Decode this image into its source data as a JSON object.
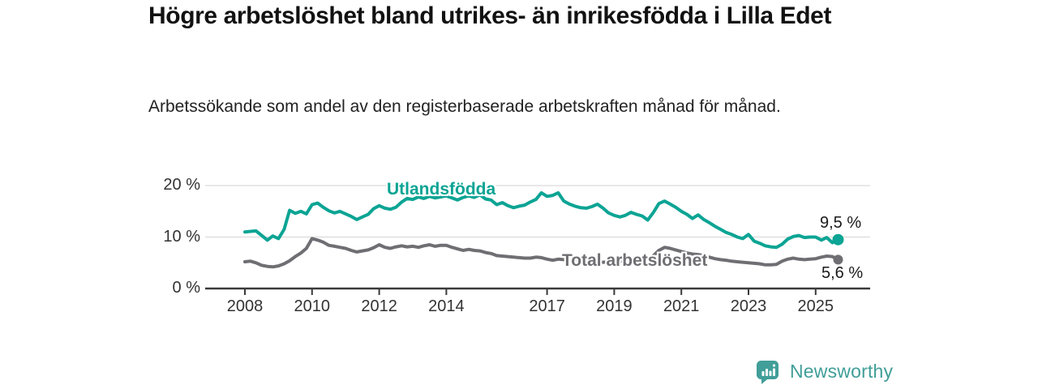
{
  "title": "Högre arbetslöshet bland utrikes- än inrikesfödda i Lilla Edet",
  "subtitle": "Arbetssökande som andel av den registerbaserade arbetskraften månad för månad.",
  "branding": {
    "logo_text": "Newsworthy",
    "logo_color": "#419e99"
  },
  "colors": {
    "background": "#ffffff",
    "axis": "#3a3a3a",
    "gridline": "#dbdbdb",
    "title_text": "#121212",
    "tick_text": "#333333"
  },
  "chart_data": {
    "type": "line",
    "title": "Högre arbetslöshet bland utrikes- än inrikesfödda i Lilla Edet",
    "subtitle": "Arbetssökande som andel av den registerbaserade arbetskraften månad för månad.",
    "xlabel": "",
    "ylabel": "",
    "grid": "horizontal",
    "x_range": [
      2007.9,
      2026.4
    ],
    "ylim": [
      0,
      22
    ],
    "y_axis": {
      "ticks": [
        {
          "label": "20 %",
          "value": 20
        },
        {
          "label": "10 %",
          "value": 10
        },
        {
          "label": "0 %",
          "value": 0
        }
      ]
    },
    "x_axis": {
      "ticks": [
        {
          "label": "2008",
          "year": 2008
        },
        {
          "label": "2010",
          "year": 2010
        },
        {
          "label": "2012",
          "year": 2012
        },
        {
          "label": "2014",
          "year": 2014
        },
        {
          "label": "2017",
          "year": 2017
        },
        {
          "label": "2019",
          "year": 2019
        },
        {
          "label": "2021",
          "year": 2021
        },
        {
          "label": "2023",
          "year": 2023
        },
        {
          "label": "2025",
          "year": 2025
        }
      ]
    },
    "series": [
      {
        "name": "Utlandsfödda",
        "color": "#0ca494",
        "end_label": "9,5 %",
        "end_value": 9.5,
        "marker_radius": 7,
        "points": [
          [
            2008.0,
            11.0
          ],
          [
            2008.17,
            11.1
          ],
          [
            2008.33,
            11.2
          ],
          [
            2008.5,
            10.3
          ],
          [
            2008.67,
            9.4
          ],
          [
            2008.83,
            10.2
          ],
          [
            2009.0,
            9.7
          ],
          [
            2009.17,
            11.5
          ],
          [
            2009.33,
            15.2
          ],
          [
            2009.5,
            14.6
          ],
          [
            2009.67,
            15.0
          ],
          [
            2009.83,
            14.5
          ],
          [
            2010.0,
            16.3
          ],
          [
            2010.17,
            16.6
          ],
          [
            2010.33,
            15.8
          ],
          [
            2010.5,
            15.1
          ],
          [
            2010.67,
            14.7
          ],
          [
            2010.83,
            15.0
          ],
          [
            2011.0,
            14.5
          ],
          [
            2011.17,
            14.0
          ],
          [
            2011.33,
            13.4
          ],
          [
            2011.5,
            13.9
          ],
          [
            2011.67,
            14.4
          ],
          [
            2011.83,
            15.5
          ],
          [
            2012.0,
            16.1
          ],
          [
            2012.17,
            15.6
          ],
          [
            2012.33,
            15.4
          ],
          [
            2012.5,
            15.8
          ],
          [
            2012.67,
            16.8
          ],
          [
            2012.83,
            17.5
          ],
          [
            2013.0,
            17.3
          ],
          [
            2013.17,
            17.8
          ],
          [
            2013.33,
            17.5
          ],
          [
            2013.5,
            17.9
          ],
          [
            2013.67,
            17.6
          ],
          [
            2013.83,
            17.8
          ],
          [
            2014.0,
            18.0
          ],
          [
            2014.17,
            17.6
          ],
          [
            2014.33,
            17.2
          ],
          [
            2014.5,
            17.7
          ],
          [
            2014.67,
            18.0
          ],
          [
            2014.83,
            17.7
          ],
          [
            2015.0,
            18.2
          ],
          [
            2015.17,
            17.4
          ],
          [
            2015.33,
            17.2
          ],
          [
            2015.5,
            16.3
          ],
          [
            2015.67,
            16.7
          ],
          [
            2015.83,
            16.1
          ],
          [
            2016.0,
            15.7
          ],
          [
            2016.17,
            16.0
          ],
          [
            2016.33,
            16.2
          ],
          [
            2016.5,
            16.8
          ],
          [
            2016.67,
            17.3
          ],
          [
            2016.83,
            18.6
          ],
          [
            2017.0,
            17.9
          ],
          [
            2017.17,
            18.1
          ],
          [
            2017.33,
            18.6
          ],
          [
            2017.5,
            17.0
          ],
          [
            2017.67,
            16.4
          ],
          [
            2017.83,
            16.0
          ],
          [
            2018.0,
            15.7
          ],
          [
            2018.17,
            15.6
          ],
          [
            2018.33,
            15.9
          ],
          [
            2018.5,
            16.4
          ],
          [
            2018.67,
            15.6
          ],
          [
            2018.83,
            14.7
          ],
          [
            2019.0,
            14.2
          ],
          [
            2019.17,
            13.9
          ],
          [
            2019.33,
            14.2
          ],
          [
            2019.5,
            14.8
          ],
          [
            2019.67,
            14.4
          ],
          [
            2019.83,
            14.1
          ],
          [
            2020.0,
            13.3
          ],
          [
            2020.17,
            14.8
          ],
          [
            2020.33,
            16.5
          ],
          [
            2020.5,
            17.0
          ],
          [
            2020.67,
            16.4
          ],
          [
            2020.83,
            15.8
          ],
          [
            2021.0,
            15.0
          ],
          [
            2021.17,
            14.4
          ],
          [
            2021.33,
            13.6
          ],
          [
            2021.5,
            14.3
          ],
          [
            2021.67,
            13.4
          ],
          [
            2021.83,
            12.8
          ],
          [
            2022.0,
            12.1
          ],
          [
            2022.17,
            11.5
          ],
          [
            2022.33,
            10.9
          ],
          [
            2022.5,
            10.5
          ],
          [
            2022.67,
            10.0
          ],
          [
            2022.83,
            9.7
          ],
          [
            2023.0,
            10.5
          ],
          [
            2023.17,
            9.2
          ],
          [
            2023.33,
            8.8
          ],
          [
            2023.5,
            8.3
          ],
          [
            2023.67,
            8.1
          ],
          [
            2023.83,
            8.0
          ],
          [
            2024.0,
            8.6
          ],
          [
            2024.17,
            9.6
          ],
          [
            2024.33,
            10.1
          ],
          [
            2024.5,
            10.3
          ],
          [
            2024.67,
            9.9
          ],
          [
            2024.83,
            10.0
          ],
          [
            2025.0,
            10.0
          ],
          [
            2025.17,
            9.4
          ],
          [
            2025.33,
            9.9
          ],
          [
            2025.5,
            8.9
          ],
          [
            2025.67,
            9.5
          ]
        ]
      },
      {
        "name": "Total arbetslöshet",
        "color": "#6e6e73",
        "end_label": "5,6 %",
        "end_value": 5.6,
        "marker_radius": 6,
        "points": [
          [
            2008.0,
            5.2
          ],
          [
            2008.17,
            5.3
          ],
          [
            2008.33,
            5.0
          ],
          [
            2008.5,
            4.5
          ],
          [
            2008.67,
            4.3
          ],
          [
            2008.83,
            4.2
          ],
          [
            2009.0,
            4.4
          ],
          [
            2009.17,
            4.8
          ],
          [
            2009.33,
            5.4
          ],
          [
            2009.5,
            6.2
          ],
          [
            2009.67,
            6.9
          ],
          [
            2009.83,
            7.8
          ],
          [
            2010.0,
            9.7
          ],
          [
            2010.17,
            9.4
          ],
          [
            2010.33,
            9.0
          ],
          [
            2010.5,
            8.4
          ],
          [
            2010.67,
            8.2
          ],
          [
            2010.83,
            8.0
          ],
          [
            2011.0,
            7.8
          ],
          [
            2011.17,
            7.4
          ],
          [
            2011.33,
            7.1
          ],
          [
            2011.5,
            7.3
          ],
          [
            2011.67,
            7.5
          ],
          [
            2011.83,
            7.9
          ],
          [
            2012.0,
            8.5
          ],
          [
            2012.17,
            8.0
          ],
          [
            2012.33,
            7.8
          ],
          [
            2012.5,
            8.1
          ],
          [
            2012.67,
            8.3
          ],
          [
            2012.83,
            8.1
          ],
          [
            2013.0,
            8.2
          ],
          [
            2013.17,
            8.0
          ],
          [
            2013.33,
            8.3
          ],
          [
            2013.5,
            8.5
          ],
          [
            2013.67,
            8.2
          ],
          [
            2013.83,
            8.4
          ],
          [
            2014.0,
            8.4
          ],
          [
            2014.17,
            8.0
          ],
          [
            2014.33,
            7.7
          ],
          [
            2014.5,
            7.4
          ],
          [
            2014.67,
            7.6
          ],
          [
            2014.83,
            7.4
          ],
          [
            2015.0,
            7.3
          ],
          [
            2015.17,
            7.0
          ],
          [
            2015.33,
            6.8
          ],
          [
            2015.5,
            6.4
          ],
          [
            2015.67,
            6.3
          ],
          [
            2015.83,
            6.2
          ],
          [
            2016.0,
            6.1
          ],
          [
            2016.17,
            6.0
          ],
          [
            2016.33,
            5.9
          ],
          [
            2016.5,
            5.9
          ],
          [
            2016.67,
            6.1
          ],
          [
            2016.83,
            6.0
          ],
          [
            2017.0,
            5.7
          ],
          [
            2017.17,
            5.5
          ],
          [
            2017.33,
            5.7
          ],
          [
            2017.5,
            5.6
          ],
          [
            2017.67,
            5.4
          ],
          [
            2017.83,
            5.3
          ],
          [
            2018.0,
            5.2
          ],
          [
            2018.17,
            5.4
          ],
          [
            2018.33,
            5.3
          ],
          [
            2018.5,
            5.2
          ],
          [
            2018.67,
            5.1
          ],
          [
            2018.83,
            5.2
          ],
          [
            2019.0,
            5.2
          ],
          [
            2019.17,
            5.3
          ],
          [
            2019.33,
            5.4
          ],
          [
            2019.5,
            5.5
          ],
          [
            2019.67,
            5.4
          ],
          [
            2019.83,
            5.5
          ],
          [
            2020.0,
            5.6
          ],
          [
            2020.17,
            6.4
          ],
          [
            2020.33,
            7.4
          ],
          [
            2020.5,
            8.0
          ],
          [
            2020.67,
            7.8
          ],
          [
            2020.83,
            7.5
          ],
          [
            2021.0,
            7.2
          ],
          [
            2021.17,
            6.9
          ],
          [
            2021.33,
            6.7
          ],
          [
            2021.5,
            6.6
          ],
          [
            2021.67,
            6.4
          ],
          [
            2021.83,
            6.1
          ],
          [
            2022.0,
            5.8
          ],
          [
            2022.17,
            5.6
          ],
          [
            2022.33,
            5.5
          ],
          [
            2022.5,
            5.3
          ],
          [
            2022.67,
            5.2
          ],
          [
            2022.83,
            5.1
          ],
          [
            2023.0,
            5.0
          ],
          [
            2023.17,
            4.9
          ],
          [
            2023.33,
            4.8
          ],
          [
            2023.5,
            4.6
          ],
          [
            2023.67,
            4.6
          ],
          [
            2023.83,
            4.7
          ],
          [
            2024.0,
            5.3
          ],
          [
            2024.17,
            5.7
          ],
          [
            2024.33,
            5.9
          ],
          [
            2024.5,
            5.7
          ],
          [
            2024.67,
            5.6
          ],
          [
            2024.83,
            5.7
          ],
          [
            2025.0,
            5.8
          ],
          [
            2025.17,
            6.1
          ],
          [
            2025.33,
            6.3
          ],
          [
            2025.5,
            6.2
          ],
          [
            2025.67,
            5.6
          ]
        ]
      }
    ],
    "legend": "inline-labels"
  }
}
